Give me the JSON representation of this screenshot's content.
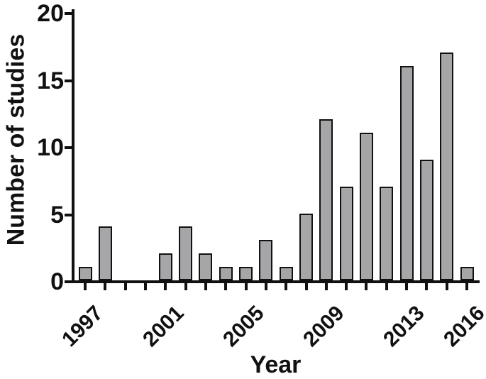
{
  "chart_data": {
    "type": "bar",
    "title": "",
    "xlabel": "Year",
    "ylabel": "Number of studies",
    "categories": [
      "1997",
      "1998",
      "1999",
      "2000",
      "2001",
      "2002",
      "2003",
      "2004",
      "2005",
      "2006",
      "2007",
      "2008",
      "2009",
      "2010",
      "2011",
      "2012",
      "2013",
      "2014",
      "2015",
      "2016"
    ],
    "values": [
      1,
      4,
      0,
      0,
      2,
      4,
      2,
      1,
      1,
      3,
      1,
      5,
      12,
      7,
      11,
      7,
      16,
      9,
      17,
      1
    ],
    "ylim": [
      0,
      20
    ],
    "yticks": [
      0,
      5,
      10,
      15,
      20
    ],
    "visible_x_tick_labels": [
      {
        "label": "1997",
        "index": 0
      },
      {
        "label": "2001",
        "index": 4
      },
      {
        "label": "2005",
        "index": 8
      },
      {
        "label": "2009",
        "index": 12
      },
      {
        "label": "2013",
        "index": 16
      },
      {
        "label": "2016",
        "index": 19
      }
    ],
    "grid": false,
    "legend": "none",
    "colors": {
      "bar_fill": "#a6a6a8",
      "bar_border": "#111111",
      "axis": "#111111",
      "background": "#ffffff"
    }
  }
}
